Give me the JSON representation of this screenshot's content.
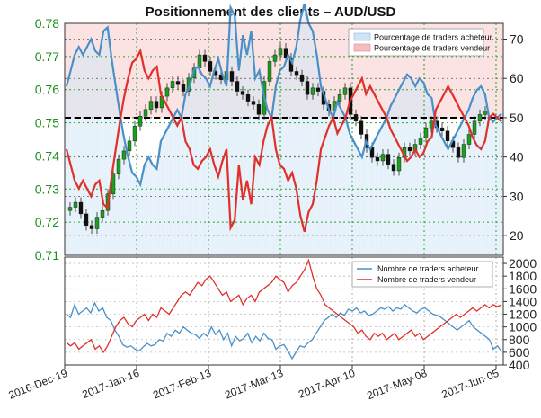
{
  "chart_data": [
    {
      "type": "line",
      "title": "Positionnement des clients – AUD/USD",
      "left_axis": {
        "range": [
          0.71,
          0.78
        ],
        "ticks": [
          "0.71",
          "0.72",
          "0.73",
          "0.74",
          "0.75",
          "0.76",
          "0.77",
          "0.78"
        ],
        "color": "#1a8f1a"
      },
      "right_axis": {
        "range": [
          15,
          74
        ],
        "ticks": [
          "20",
          "30",
          "40",
          "50",
          "60",
          "70"
        ]
      },
      "x_tick_labels": [
        "2016-Dec-19",
        "2017-Jan-16",
        "2017-Feb-13",
        "2017-Mar-13",
        "2017-Apr-10",
        "2017-May-08",
        "2017-Jun-05"
      ],
      "reference_line": 50,
      "grid": true,
      "legend": {
        "placement": "top-right",
        "entries": [
          "Pourcentage de traders acheteur",
          "Pourcentage de traders vendeur"
        ]
      },
      "series": [
        {
          "name": "Pourcentage de traders acheteur",
          "color": "#4a90c8",
          "values": [
            58,
            62,
            66,
            68,
            66,
            68,
            70,
            67,
            66,
            72,
            73,
            65,
            58,
            51,
            45,
            40,
            36,
            35,
            33,
            38,
            40,
            38,
            37,
            44,
            46,
            48,
            50,
            52,
            50,
            56,
            58,
            62,
            63,
            61,
            60,
            58,
            62,
            65,
            61,
            58,
            78,
            76,
            62,
            71,
            66,
            72,
            60,
            62,
            56,
            52,
            50,
            58,
            62,
            63,
            66,
            64,
            68,
            75,
            79,
            74,
            72,
            66,
            58,
            55,
            52,
            50,
            54,
            52,
            50,
            46,
            44,
            42,
            40,
            44,
            42,
            44,
            46,
            48,
            50,
            53,
            55,
            57,
            59,
            61,
            60,
            58,
            60,
            59,
            56,
            55,
            48,
            46,
            44,
            42,
            44,
            46,
            48,
            50,
            52,
            55,
            57,
            58,
            56,
            50,
            49,
            50,
            51
          ]
        },
        {
          "name": "Pourcentage de traders vendeur",
          "color": "#e0302a",
          "values": [
            42,
            38,
            34,
            32,
            34,
            32,
            30,
            33,
            34,
            28,
            27,
            35,
            42,
            49,
            55,
            60,
            64,
            65,
            67,
            62,
            60,
            62,
            63,
            56,
            54,
            52,
            50,
            48,
            50,
            44,
            42,
            38,
            37,
            39,
            40,
            42,
            38,
            35,
            39,
            42,
            22,
            24,
            38,
            29,
            34,
            28,
            40,
            38,
            44,
            48,
            50,
            42,
            38,
            37,
            34,
            36,
            32,
            25,
            21,
            26,
            28,
            34,
            42,
            45,
            48,
            50,
            46,
            48,
            50,
            54,
            56,
            58,
            60,
            56,
            58,
            56,
            54,
            52,
            50,
            47,
            45,
            43,
            41,
            39,
            40,
            42,
            40,
            41,
            44,
            45,
            52,
            54,
            56,
            58,
            56,
            54,
            52,
            50,
            48,
            45,
            43,
            42,
            44,
            50,
            51,
            50,
            49
          ]
        },
        {
          "name": "AUD/USD",
          "type": "candlestick",
          "values": [
            0.7245,
            0.726,
            0.7225,
            0.719,
            0.718,
            0.7215,
            0.7235,
            0.7285,
            0.7345,
            0.739,
            0.7415,
            0.7445,
            0.749,
            0.752,
            0.754,
            0.7565,
            0.7545,
            0.758,
            0.7605,
            0.7625,
            0.7615,
            0.7595,
            0.7635,
            0.7665,
            0.7705,
            0.7685,
            0.7655,
            0.7645,
            0.763,
            0.7655,
            0.7625,
            0.7595,
            0.7585,
            0.7565,
            0.7555,
            0.7525,
            0.7625,
            0.7685,
            0.7705,
            0.7725,
            0.7695,
            0.7655,
            0.7645,
            0.7625,
            0.7585,
            0.7605,
            0.7595,
            0.7555,
            0.7535,
            0.7565,
            0.7585,
            0.7605,
            0.7525,
            0.7505,
            0.7465,
            0.7425,
            0.7395,
            0.7385,
            0.7405,
            0.7375,
            0.7355,
            0.7395,
            0.7425,
            0.7415,
            0.7435,
            0.7455,
            0.7485,
            0.7505,
            0.7485,
            0.7475,
            0.7445,
            0.7425,
            0.7395,
            0.7435,
            0.7465,
            0.7505,
            0.7525,
            0.7535
          ]
        }
      ]
    },
    {
      "type": "line",
      "y_axis": {
        "range": [
          400,
          2100
        ],
        "ticks": [
          "400",
          "600",
          "800",
          "1000",
          "1200",
          "1400",
          "1600",
          "1800",
          "2000"
        ]
      },
      "x_tick_labels": [
        "2016-Dec-19",
        "2017-Jan-16",
        "2017-Feb-13",
        "2017-Mar-13",
        "2017-Apr-10",
        "2017-May-08",
        "2017-Jun-05"
      ],
      "grid": true,
      "legend": {
        "placement": "top-right",
        "entries": [
          "Nombre de traders acheteur",
          "Nombre de traders vendeur"
        ]
      },
      "series": [
        {
          "name": "Nombre de traders acheteur",
          "color": "#4a90c8",
          "values": [
            1200,
            1150,
            1350,
            1200,
            1250,
            1300,
            1220,
            1380,
            1250,
            1300,
            1150,
            1100,
            950,
            850,
            720,
            680,
            700,
            650,
            620,
            680,
            740,
            700,
            720,
            800,
            780,
            900,
            850,
            950,
            900,
            1000,
            950,
            900,
            880,
            820,
            900,
            850,
            1000,
            880,
            950,
            800,
            900,
            700,
            850,
            780,
            820,
            900,
            750,
            850,
            780,
            900,
            820,
            800,
            650,
            700,
            720,
            620,
            500,
            600,
            700,
            680,
            750,
            800,
            900,
            1000,
            1100,
            1150,
            1200,
            1150,
            1220,
            1180,
            1280,
            1250,
            1300,
            1220,
            1250,
            1180,
            1200,
            1250,
            1300,
            1280,
            1320,
            1250,
            1300,
            1280,
            1350,
            1300,
            1250,
            1220,
            1280,
            1300,
            1250,
            1200,
            1180,
            1150,
            1100,
            1050,
            1000,
            950,
            1000,
            1050,
            1100,
            1000,
            950,
            900,
            850,
            800,
            650,
            700,
            620
          ]
        },
        {
          "name": "Nombre de traders vendeur",
          "color": "#e0302a",
          "values": [
            750,
            700,
            750,
            650,
            700,
            750,
            800,
            650,
            700,
            600,
            700,
            850,
            1000,
            1100,
            1150,
            1050,
            1000,
            1100,
            1150,
            1200,
            1100,
            1200,
            1150,
            1300,
            1250,
            1200,
            1300,
            1400,
            1500,
            1550,
            1500,
            1600,
            1700,
            1650,
            1750,
            1800,
            1700,
            1600,
            1500,
            1550,
            1400,
            1450,
            1500,
            1350,
            1450,
            1500,
            1400,
            1550,
            1600,
            1650,
            1700,
            1800,
            1750,
            1700,
            1550,
            1650,
            1700,
            1800,
            1900,
            2050,
            1800,
            1600,
            1500,
            1350,
            1300,
            1250,
            1200,
            1150,
            1100,
            1050,
            1000,
            900,
            950,
            850,
            800,
            900,
            850,
            900,
            800,
            850,
            900,
            800,
            850,
            900,
            950,
            850,
            900,
            800,
            850,
            900,
            950,
            1000,
            1050,
            1100,
            1150,
            1200,
            1150,
            1200,
            1250,
            1300,
            1250,
            1300,
            1350,
            1300,
            1350,
            1320,
            1350
          ]
        }
      ]
    }
  ]
}
